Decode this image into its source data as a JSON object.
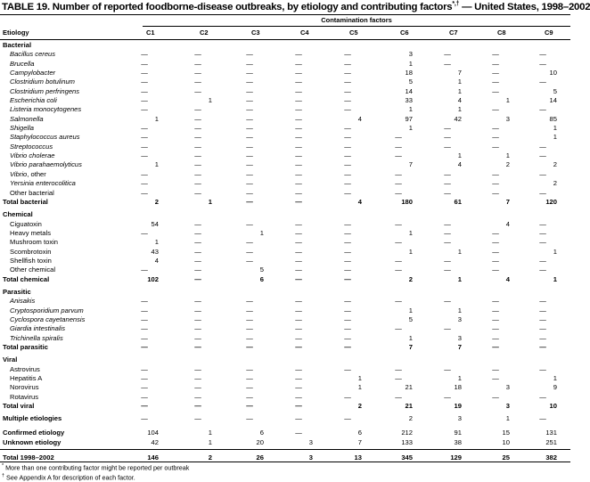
{
  "title": "TABLE 19. Number of reported foodborne-disease outbreaks, by etiology and contributing factors",
  "title_marks": "*,†",
  "title_suffix": " — United States, 1998–2002",
  "group_header": "Contamination factors",
  "row_header": "Etiology",
  "columns": [
    "C1",
    "C2",
    "C3",
    "C4",
    "C5",
    "C6",
    "C7",
    "C8",
    "C9"
  ],
  "dash": "—",
  "rows": [
    {
      "type": "section",
      "label": "Bacterial"
    },
    {
      "type": "item",
      "label": "Bacillus cereus",
      "italic": true,
      "values": [
        "—",
        "—",
        "—",
        "—",
        "—",
        "3",
        "—",
        "—",
        "—"
      ]
    },
    {
      "type": "item",
      "label": "Brucella",
      "italic": true,
      "values": [
        "—",
        "—",
        "—",
        "—",
        "—",
        "1",
        "—",
        "—",
        "—"
      ]
    },
    {
      "type": "item",
      "label": "Campylobacter",
      "italic": true,
      "values": [
        "—",
        "—",
        "—",
        "—",
        "—",
        "18",
        "7",
        "—",
        "10"
      ]
    },
    {
      "type": "item",
      "label": "Clostridium botulinum",
      "italic": true,
      "values": [
        "—",
        "—",
        "—",
        "—",
        "—",
        "5",
        "1",
        "—",
        "—"
      ]
    },
    {
      "type": "item",
      "label": "Clostridium perfringens",
      "italic": true,
      "values": [
        "—",
        "—",
        "—",
        "—",
        "—",
        "14",
        "1",
        "—",
        "5"
      ]
    },
    {
      "type": "item",
      "label": "Escherichia coli",
      "italic": true,
      "values": [
        "—",
        "1",
        "—",
        "—",
        "—",
        "33",
        "4",
        "1",
        "14"
      ]
    },
    {
      "type": "item",
      "label": "Listeria monocytogenes",
      "italic": true,
      "values": [
        "—",
        "—",
        "—",
        "—",
        "—",
        "1",
        "1",
        "—",
        "—"
      ]
    },
    {
      "type": "item",
      "label": "Salmonella",
      "italic": true,
      "values": [
        "1",
        "—",
        "—",
        "—",
        "4",
        "97",
        "42",
        "3",
        "85"
      ]
    },
    {
      "type": "item",
      "label": "Shigella",
      "italic": true,
      "values": [
        "—",
        "—",
        "—",
        "—",
        "—",
        "1",
        "—",
        "—",
        "1"
      ]
    },
    {
      "type": "item",
      "label": "Staphylococcus aureus",
      "italic": true,
      "values": [
        "—",
        "—",
        "—",
        "—",
        "—",
        "—",
        "—",
        "—",
        "1"
      ]
    },
    {
      "type": "item",
      "label": "Streptococcus",
      "italic": true,
      "values": [
        "—",
        "—",
        "—",
        "—",
        "—",
        "—",
        "—",
        "—",
        "—"
      ]
    },
    {
      "type": "item",
      "label": "Vibrio cholerae",
      "italic": true,
      "values": [
        "—",
        "—",
        "—",
        "—",
        "—",
        "—",
        "1",
        "1",
        "—"
      ]
    },
    {
      "type": "item",
      "label": "Vibrio parahaemolyticus",
      "italic": true,
      "values": [
        "1",
        "—",
        "—",
        "—",
        "—",
        "7",
        "4",
        "2",
        "2"
      ]
    },
    {
      "type": "item",
      "label_italic": "Vibrio",
      "label": ", other",
      "values": [
        "—",
        "—",
        "—",
        "—",
        "—",
        "—",
        "—",
        "—",
        "—"
      ]
    },
    {
      "type": "item",
      "label": "Yersinia enterocolitica",
      "italic": true,
      "values": [
        "—",
        "—",
        "—",
        "—",
        "—",
        "—",
        "—",
        "—",
        "2"
      ]
    },
    {
      "type": "item",
      "label": "Other bacterial",
      "values": [
        "—",
        "—",
        "—",
        "—",
        "—",
        "—",
        "—",
        "—",
        "—"
      ]
    },
    {
      "type": "total",
      "label": "Total bacterial",
      "bold_values": true,
      "values": [
        "2",
        "1",
        "—",
        "—",
        "4",
        "180",
        "61",
        "7",
        "120"
      ]
    },
    {
      "type": "gap"
    },
    {
      "type": "section",
      "label": "Chemical"
    },
    {
      "type": "item",
      "label": "Ciguatoxin",
      "values": [
        "54",
        "—",
        "—",
        "—",
        "—",
        "—",
        "—",
        "4",
        "—"
      ]
    },
    {
      "type": "item",
      "label": "Heavy metals",
      "values": [
        "—",
        "—",
        "1",
        "—",
        "—",
        "1",
        "—",
        "—",
        "—"
      ]
    },
    {
      "type": "item",
      "label": "Mushroom toxin",
      "values": [
        "1",
        "—",
        "—",
        "—",
        "—",
        "—",
        "—",
        "—",
        "—"
      ]
    },
    {
      "type": "item",
      "label": "Scombrotoxin",
      "values": [
        "43",
        "—",
        "—",
        "—",
        "—",
        "1",
        "1",
        "—",
        "1"
      ]
    },
    {
      "type": "item",
      "label": "Shellfish toxin",
      "values": [
        "4",
        "—",
        "—",
        "—",
        "—",
        "—",
        "—",
        "—",
        "—"
      ]
    },
    {
      "type": "item",
      "label": "Other chemical",
      "values": [
        "—",
        "—",
        "5",
        "—",
        "—",
        "—",
        "—",
        "—",
        "—"
      ]
    },
    {
      "type": "total",
      "label": "Total chemical",
      "bold_values": true,
      "values": [
        "102",
        "—",
        "6",
        "—",
        "—",
        "2",
        "1",
        "4",
        "1"
      ]
    },
    {
      "type": "gap"
    },
    {
      "type": "section",
      "label": "Parasitic"
    },
    {
      "type": "item",
      "label": "Anisakis",
      "italic": true,
      "values": [
        "—",
        "—",
        "—",
        "—",
        "—",
        "—",
        "—",
        "—",
        "—"
      ]
    },
    {
      "type": "item",
      "label": "Cryptosporidium parvum",
      "italic": true,
      "values": [
        "—",
        "—",
        "—",
        "—",
        "—",
        "1",
        "1",
        "—",
        "—"
      ]
    },
    {
      "type": "item",
      "label": "Cyclospora cayetanensis",
      "italic": true,
      "values": [
        "—",
        "—",
        "—",
        "—",
        "—",
        "5",
        "3",
        "—",
        "—"
      ]
    },
    {
      "type": "item",
      "label": "Giardia intestinalis",
      "italic": true,
      "values": [
        "—",
        "—",
        "—",
        "—",
        "—",
        "—",
        "—",
        "—",
        "—"
      ]
    },
    {
      "type": "item",
      "label": "Trichinella spiralis",
      "italic": true,
      "values": [
        "—",
        "—",
        "—",
        "—",
        "—",
        "1",
        "3",
        "—",
        "—"
      ]
    },
    {
      "type": "total",
      "label": "Total parasitic",
      "bold_values": true,
      "values": [
        "—",
        "—",
        "—",
        "—",
        "—",
        "7",
        "7",
        "—",
        "—"
      ]
    },
    {
      "type": "gap"
    },
    {
      "type": "section",
      "label": "Viral"
    },
    {
      "type": "item",
      "label": "Astrovirus",
      "values": [
        "—",
        "—",
        "—",
        "—",
        "—",
        "—",
        "—",
        "—",
        "—"
      ]
    },
    {
      "type": "item",
      "label": "Hepatitis A",
      "values": [
        "—",
        "—",
        "—",
        "—",
        "1",
        "—",
        "1",
        "—",
        "1"
      ]
    },
    {
      "type": "item",
      "label": "Norovirus",
      "values": [
        "—",
        "—",
        "—",
        "—",
        "1",
        "21",
        "18",
        "3",
        "9"
      ]
    },
    {
      "type": "item",
      "label": "Rotavirus",
      "values": [
        "—",
        "—",
        "—",
        "—",
        "—",
        "—",
        "—",
        "—",
        "—"
      ]
    },
    {
      "type": "total",
      "label": "Total viral",
      "bold_values": true,
      "values": [
        "—",
        "—",
        "—",
        "—",
        "2",
        "21",
        "19",
        "3",
        "10"
      ]
    },
    {
      "type": "gap"
    },
    {
      "type": "summary",
      "label": "Multiple etiologies",
      "values": [
        "—",
        "—",
        "—",
        "—",
        "—",
        "2",
        "3",
        "1",
        "—"
      ]
    },
    {
      "type": "gap6"
    },
    {
      "type": "summary",
      "label": "Confirmed etiology",
      "values": [
        "104",
        "1",
        "6",
        "—",
        "6",
        "212",
        "91",
        "15",
        "131"
      ]
    },
    {
      "type": "summary",
      "label": "Unknown etiology",
      "values": [
        "42",
        "1",
        "20",
        "3",
        "7",
        "133",
        "38",
        "10",
        "251"
      ]
    },
    {
      "type": "rule"
    },
    {
      "type": "summary",
      "label": "Total 1998–2002",
      "bold_values": true,
      "values": [
        "146",
        "2",
        "26",
        "3",
        "13",
        "345",
        "129",
        "25",
        "382"
      ]
    }
  ],
  "footnotes": [
    {
      "mark": "*",
      "text": " More than one contributing factor might be reported per outbreak"
    },
    {
      "mark": "†",
      "text": " See Appendix A for description of each factor."
    }
  ]
}
